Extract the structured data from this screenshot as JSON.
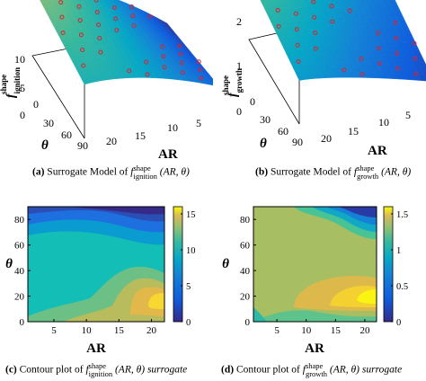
{
  "captions": {
    "a": {
      "tag": "(a)",
      "text": "Surrogate Model of",
      "fbase": "f",
      "sup": "shape",
      "sub": "ignition",
      "args": "(AR, θ)"
    },
    "b": {
      "tag": "(b)",
      "text": "Surrogate Model of",
      "fbase": "f",
      "sup": "shape",
      "sub": "growth",
      "args": "(AR, θ)"
    },
    "c": {
      "tag": "(c)",
      "text": "Contour plot of",
      "fbase": "f",
      "sup": "shape",
      "sub": "ignition",
      "args": "(AR, θ) surrogate"
    },
    "d": {
      "tag": "(d)",
      "text": "Contour plot of",
      "fbase": "f",
      "sup": "shape",
      "sub": "growth",
      "args": "(AR, θ) surrogate"
    }
  },
  "chart_data": [
    {
      "id": "a",
      "type": "surface3d",
      "zlabel": {
        "base": "f",
        "sup": "shape",
        "sub": "ignition"
      },
      "xlabel": "AR",
      "ylabel": "θ",
      "ztick_labels": [
        "0",
        "5",
        "10"
      ],
      "theta_tick_labels": [
        "0",
        "30",
        "60",
        "90"
      ],
      "ar_tick_labels": [
        "5",
        "10",
        "15",
        "20"
      ],
      "zlim": [
        0,
        15
      ]
    },
    {
      "id": "b",
      "type": "surface3d",
      "zlabel": {
        "base": "f",
        "sup": "shape",
        "sub": "growth"
      },
      "xlabel": "AR",
      "ylabel": "θ",
      "ztick_labels": [
        "0",
        "1",
        "2"
      ],
      "theta_tick_labels": [
        "0",
        "30",
        "60",
        "90"
      ],
      "ar_tick_labels": [
        "5",
        "10",
        "15",
        "20"
      ],
      "zlim": [
        0,
        2
      ]
    },
    {
      "id": "c",
      "type": "heatmap",
      "xlabel": "AR",
      "ylabel": "θ",
      "x_tick_labels": [
        "5",
        "10",
        "15",
        "20"
      ],
      "y_tick_labels": [
        "0",
        "20",
        "40",
        "60",
        "80"
      ],
      "xlim": [
        1,
        22
      ],
      "ylim": [
        0,
        90
      ],
      "colorbar_ticks": [
        0,
        5,
        10,
        15
      ],
      "colorbar_tick_labels": [
        "0",
        "5",
        "10",
        "15"
      ],
      "colorbar_range": [
        0,
        16
      ]
    },
    {
      "id": "d",
      "type": "heatmap",
      "xlabel": "AR",
      "ylabel": "θ",
      "x_tick_labels": [
        "5",
        "10",
        "15",
        "20"
      ],
      "y_tick_labels": [
        "0",
        "20",
        "40",
        "60",
        "80"
      ],
      "xlim": [
        1,
        22
      ],
      "ylim": [
        0,
        90
      ],
      "colorbar_ticks": [
        0,
        0.5,
        1,
        1.5
      ],
      "colorbar_tick_labels": [
        "0",
        "0.5",
        "1",
        "1.5"
      ],
      "colorbar_range": [
        0,
        1.6
      ]
    }
  ]
}
